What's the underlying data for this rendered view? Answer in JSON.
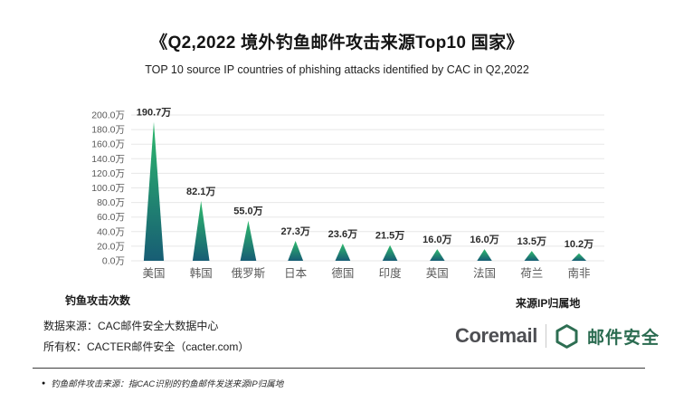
{
  "header": {
    "title": "《Q2,2022 境外钓鱼邮件攻击来源Top10 国家》",
    "subtitle": "TOP 10 source IP countries of phishing attacks identified by CAC in Q2,2022"
  },
  "chart_data": {
    "type": "bar",
    "bar_shape": "triangle",
    "title": "《Q2,2022 境外钓鱼邮件攻击来源Top10 国家》",
    "categories": [
      "美国",
      "韩国",
      "俄罗斯",
      "日本",
      "德国",
      "印度",
      "英国",
      "法国",
      "荷兰",
      "南非"
    ],
    "values": [
      190.7,
      82.1,
      55.0,
      27.3,
      23.6,
      21.5,
      16.0,
      16.0,
      13.5,
      10.2
    ],
    "value_labels": [
      "190.7万",
      "82.1万",
      "55.0万",
      "27.3万",
      "23.6万",
      "21.5万",
      "16.0万",
      "16.0万",
      "13.5万",
      "10.2万"
    ],
    "unit": "万",
    "ylim": [
      0,
      200
    ],
    "ytick_step": 20,
    "ytick_labels": [
      "0.0万",
      "20.0万",
      "40.0万",
      "60.0万",
      "80.0万",
      "100.0万",
      "120.0万",
      "140.0万",
      "160.0万",
      "180.0万",
      "200.0万"
    ],
    "ylabel": "钓鱼攻击次数",
    "xlabel": "来源IP归属地",
    "grid": true,
    "legend": false,
    "colors": {
      "bar_gradient_top": "#2eb96d",
      "bar_gradient_bottom": "#175d74",
      "gridline": "#e7e7e7",
      "value_label": "#2b2b2b",
      "category_label": "#595959",
      "tick_label": "#5a5a5a"
    }
  },
  "source": {
    "data_source": "数据来源：CAC邮件安全大数据中心",
    "ownership": "所有权：CACTER邮件安全（cacter.com）"
  },
  "brand": {
    "coremail": "Coremail",
    "product": "邮件安全"
  },
  "footnote": {
    "bullet": "●",
    "text": "钓鱼邮件攻击来源：指CAC识别的钓鱼邮件发送来源IP归属地"
  }
}
